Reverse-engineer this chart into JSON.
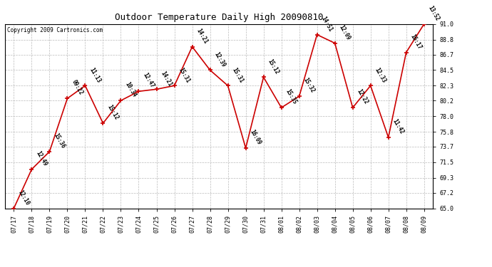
{
  "title": "Outdoor Temperature Daily High 20090810",
  "copyright": "Copyright 2009 Cartronics.com",
  "x_labels": [
    "07/17",
    "07/18",
    "07/19",
    "07/20",
    "07/21",
    "07/22",
    "07/23",
    "07/24",
    "07/25",
    "07/26",
    "07/27",
    "07/28",
    "07/29",
    "07/30",
    "07/31",
    "08/01",
    "08/02",
    "08/03",
    "08/04",
    "08/05",
    "08/06",
    "08/07",
    "08/08",
    "08/09"
  ],
  "y_values": [
    65.0,
    70.5,
    73.0,
    80.5,
    82.3,
    77.0,
    80.2,
    81.5,
    81.8,
    82.3,
    87.8,
    84.5,
    82.3,
    73.5,
    83.5,
    79.2,
    80.8,
    89.5,
    88.3,
    79.2,
    82.3,
    75.0,
    87.0,
    91.0
  ],
  "point_labels": [
    "12:10",
    "12:49",
    "15:36",
    "09:22",
    "11:13",
    "15:12",
    "10:34",
    "12:47",
    "14:21",
    "15:31",
    "14:21",
    "12:39",
    "15:31",
    "16:09",
    "15:12",
    "15:35",
    "15:32",
    "14:51",
    "12:09",
    "12:22",
    "12:33",
    "11:42",
    "16:17",
    "13:52"
  ],
  "y_ticks": [
    65.0,
    67.2,
    69.3,
    71.5,
    73.7,
    75.8,
    78.0,
    80.2,
    82.3,
    84.5,
    86.7,
    88.8,
    91.0
  ],
  "y_min": 65.0,
  "y_max": 91.0,
  "line_color": "#cc0000",
  "marker_color": "#cc0000",
  "bg_color": "#ffffff",
  "grid_color": "#bbbbbb",
  "title_fontsize": 9,
  "label_fontsize": 6,
  "point_label_fontsize": 5.5,
  "copyright_fontsize": 5.5
}
